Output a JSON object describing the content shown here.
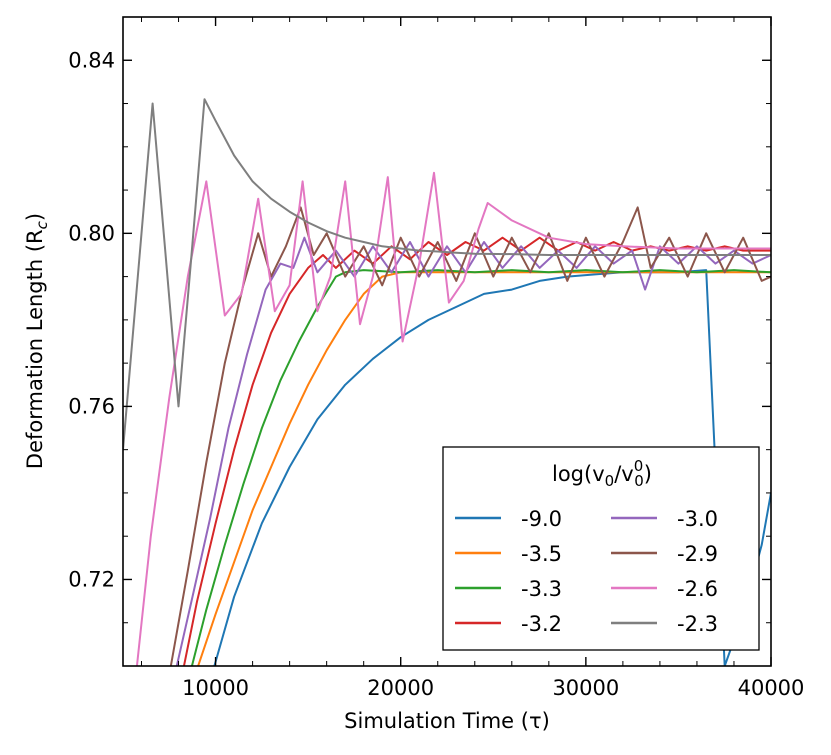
{
  "chart_data": {
    "type": "line",
    "title": "",
    "xlabel": "Simulation Time (τ)",
    "ylabel": "Deformation Length (R",
    "ylabel_sub": "c",
    "ylabel_close": ")",
    "xlim": [
      5000,
      40000
    ],
    "ylim": [
      0.7,
      0.85
    ],
    "xticks": [
      10000,
      20000,
      30000,
      40000
    ],
    "xtick_labels": [
      "10000",
      "20000",
      "30000",
      "40000"
    ],
    "yticks": [
      0.72,
      0.76,
      0.8,
      0.84
    ],
    "ytick_labels": [
      "0.72",
      "0.76",
      "0.80",
      "0.84"
    ],
    "legend": {
      "title_prefix": "log(v",
      "title_sub1": "0",
      "title_mid": "/v",
      "title_sup": "0",
      "title_sub2": "0",
      "title_suffix": ")",
      "location": "lower-right",
      "ncol": 2
    },
    "series": [
      {
        "name": "-9.0",
        "color": "#1f77b4",
        "x": [
          9800,
          11000,
          12500,
          14000,
          15500,
          17000,
          18500,
          20000,
          21500,
          23000,
          24500,
          26000,
          27500,
          29000,
          30500,
          32000,
          33500,
          35000,
          36500,
          37500,
          38500,
          39500,
          40000
        ],
        "y": [
          0.698,
          0.716,
          0.733,
          0.746,
          0.757,
          0.765,
          0.771,
          0.776,
          0.78,
          0.783,
          0.786,
          0.787,
          0.789,
          0.79,
          0.7905,
          0.791,
          0.791,
          0.791,
          0.7915,
          0.7,
          0.712,
          0.728,
          0.74
        ]
      },
      {
        "name": "-3.5",
        "color": "#ff7f0e",
        "x": [
          8900,
          10000,
          11000,
          12000,
          13000,
          14000,
          15000,
          16000,
          17000,
          18000,
          19000,
          20000,
          22000,
          24000,
          27000,
          30000,
          33000,
          36000,
          40000
        ],
        "y": [
          0.698,
          0.712,
          0.724,
          0.736,
          0.746,
          0.756,
          0.765,
          0.773,
          0.78,
          0.786,
          0.79,
          0.791,
          0.791,
          0.791,
          0.791,
          0.791,
          0.791,
          0.791,
          0.791
        ]
      },
      {
        "name": "-3.3",
        "color": "#2ca02c",
        "x": [
          8600,
          9500,
          10500,
          11500,
          12500,
          13500,
          14500,
          15500,
          16500,
          17000,
          18000,
          20000,
          22000,
          24000,
          26000,
          28000,
          30000,
          32000,
          34000,
          36000,
          38000,
          40000
        ],
        "y": [
          0.698,
          0.713,
          0.728,
          0.742,
          0.755,
          0.766,
          0.775,
          0.783,
          0.79,
          0.791,
          0.7915,
          0.791,
          0.7915,
          0.791,
          0.7915,
          0.791,
          0.7915,
          0.791,
          0.7915,
          0.791,
          0.7915,
          0.791
        ]
      },
      {
        "name": "-3.2",
        "color": "#d62728",
        "x": [
          8200,
          9000,
          10000,
          11000,
          12000,
          13000,
          14000,
          15000,
          15800,
          16500,
          17500,
          18500,
          19500,
          20500,
          21500,
          22500,
          23500,
          24500,
          25500,
          26500,
          27500,
          28500,
          29500,
          30500,
          31500,
          32500,
          33500,
          34500,
          35500,
          36500,
          37500,
          38500,
          39500,
          40000
        ],
        "y": [
          0.698,
          0.715,
          0.733,
          0.75,
          0.765,
          0.777,
          0.786,
          0.792,
          0.795,
          0.792,
          0.796,
          0.793,
          0.797,
          0.794,
          0.798,
          0.795,
          0.798,
          0.796,
          0.799,
          0.796,
          0.799,
          0.796,
          0.798,
          0.796,
          0.798,
          0.796,
          0.797,
          0.796,
          0.797,
          0.796,
          0.797,
          0.796,
          0.796,
          0.796
        ]
      },
      {
        "name": "-3.0",
        "color": "#9467bd",
        "x": [
          7800,
          8700,
          9700,
          10700,
          11700,
          12700,
          13500,
          14200,
          14800,
          15500,
          16500,
          17500,
          18500,
          19500,
          20500,
          21500,
          22500,
          23500,
          24500,
          25500,
          26500,
          27500,
          28500,
          29500,
          30500,
          31500,
          32500,
          33200,
          34000,
          35000,
          36000,
          37000,
          38000,
          39000,
          40000
        ],
        "y": [
          0.698,
          0.715,
          0.734,
          0.755,
          0.772,
          0.787,
          0.793,
          0.792,
          0.799,
          0.791,
          0.796,
          0.79,
          0.797,
          0.791,
          0.798,
          0.79,
          0.797,
          0.791,
          0.798,
          0.792,
          0.797,
          0.792,
          0.796,
          0.792,
          0.797,
          0.793,
          0.796,
          0.787,
          0.797,
          0.793,
          0.797,
          0.793,
          0.796,
          0.793,
          0.795
        ]
      },
      {
        "name": "-2.9",
        "color": "#8c564b",
        "x": [
          7500,
          8500,
          9500,
          10500,
          11500,
          12300,
          13000,
          13800,
          14600,
          15300,
          16000,
          17000,
          18000,
          19000,
          20000,
          21000,
          22000,
          23000,
          24000,
          25000,
          26000,
          27000,
          28000,
          29000,
          30000,
          31000,
          32000,
          32800,
          33500,
          34500,
          35500,
          36500,
          37500,
          38500,
          39500,
          40000
        ],
        "y": [
          0.698,
          0.722,
          0.747,
          0.77,
          0.788,
          0.8,
          0.79,
          0.797,
          0.806,
          0.795,
          0.8,
          0.79,
          0.797,
          0.788,
          0.799,
          0.79,
          0.798,
          0.789,
          0.8,
          0.79,
          0.799,
          0.791,
          0.8,
          0.789,
          0.799,
          0.79,
          0.798,
          0.806,
          0.792,
          0.799,
          0.79,
          0.8,
          0.791,
          0.799,
          0.789,
          0.79
        ]
      },
      {
        "name": "-2.6",
        "color": "#e377c2",
        "x": [
          5700,
          6500,
          7500,
          8500,
          9500,
          10500,
          11400,
          12300,
          13200,
          14000,
          14700,
          15500,
          16200,
          17000,
          17800,
          18500,
          19300,
          20100,
          21000,
          21800,
          22600,
          23400,
          24200,
          24700,
          26000,
          28000,
          30000,
          32000,
          35000,
          38000,
          40000
        ],
        "y": [
          0.698,
          0.73,
          0.762,
          0.79,
          0.812,
          0.781,
          0.786,
          0.808,
          0.782,
          0.788,
          0.812,
          0.782,
          0.79,
          0.812,
          0.779,
          0.79,
          0.813,
          0.775,
          0.793,
          0.814,
          0.784,
          0.789,
          0.801,
          0.807,
          0.803,
          0.799,
          0.7975,
          0.797,
          0.7965,
          0.7965,
          0.7965
        ]
      },
      {
        "name": "-2.3",
        "color": "#7f7f7f",
        "x": [
          5000,
          5800,
          6600,
          7300,
          8000,
          8700,
          9400,
          10000,
          11000,
          12000,
          13000,
          14000,
          15000,
          16000,
          17000,
          18000,
          19000,
          20000,
          21000,
          22000,
          23000,
          24000,
          26000,
          28000,
          30000,
          33000,
          36000,
          40000
        ],
        "y": [
          0.75,
          0.79,
          0.83,
          0.795,
          0.76,
          0.795,
          0.831,
          0.826,
          0.818,
          0.812,
          0.808,
          0.805,
          0.8025,
          0.8005,
          0.799,
          0.798,
          0.797,
          0.7965,
          0.796,
          0.7958,
          0.7955,
          0.7953,
          0.7952,
          0.795,
          0.795,
          0.795,
          0.795,
          0.795
        ]
      }
    ]
  }
}
